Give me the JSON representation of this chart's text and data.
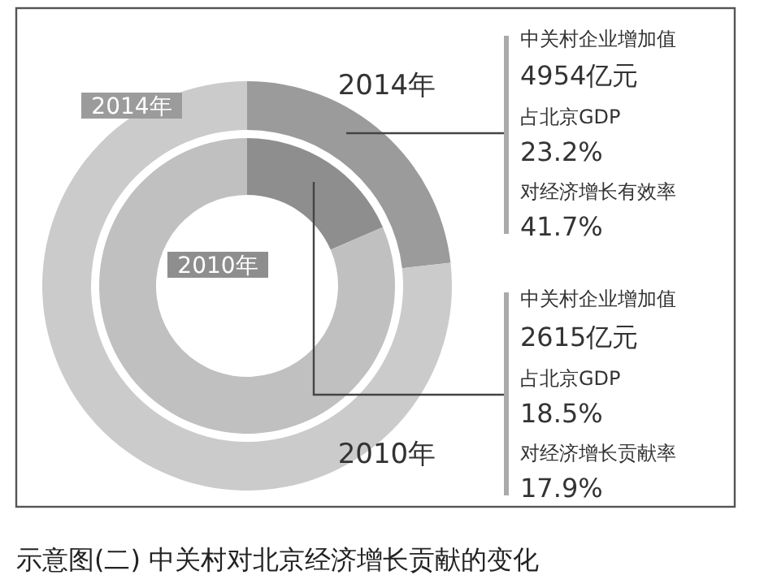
{
  "chart_data": [
    {
      "type": "donut",
      "title": "示意图(二) 中关村对北京经济增长贡献的变化",
      "categories": [
        null,
        null
      ],
      "series": [
        {
          "name": "2014年",
          "values": [
            23.2,
            76.8
          ],
          "colors": [
            "#9b9b9b",
            "#cbcbcb"
          ]
        }
      ],
      "annotations": [
        {
          "text": "中关村企业增加值"
        },
        {
          "text": "4954亿元"
        },
        {
          "text": "占北京GDP"
        },
        {
          "text": "23.2%"
        },
        {
          "text": "对经济增长有效率"
        },
        {
          "text": "41.7%"
        }
      ]
    },
    {
      "type": "donut",
      "categories": [
        null,
        null
      ],
      "series": [
        {
          "name": "2010年",
          "values": [
            18.5,
            81.5
          ],
          "colors": [
            "#8e8e8e",
            "#c0c0c0"
          ]
        }
      ],
      "annotations": [
        {
          "text": "中关村企业增加值"
        },
        {
          "text": "2615亿元"
        },
        {
          "text": "占北京GDP"
        },
        {
          "text": "18.5%"
        },
        {
          "text": "对经济增长贡献率"
        },
        {
          "text": "17.9%"
        }
      ]
    }
  ]
}
